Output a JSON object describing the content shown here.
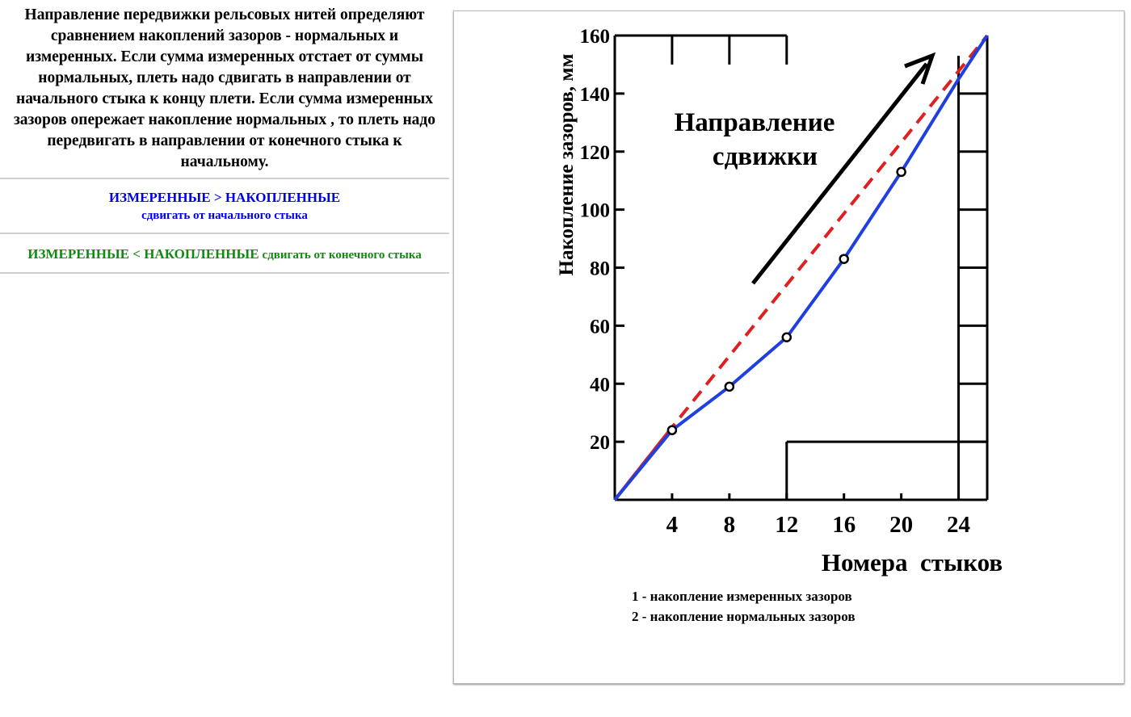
{
  "description": {
    "text": "Направление передвижки рельсовых нитей определяют сравнением накоплений зазоров - нормальных и измеренных. Если сумма измеренных отстает от суммы нормальных, плеть надо сдвигать в направлении от начального стыка к концу плети. Если сумма измеренных зазоров опережает накопление нормальных , то плеть надо передвигать в направлении от конечного стыка к начальному."
  },
  "rule_blue": {
    "condition": "ИЗМЕРЕННЫЕ  >   НАКОПЛЕННЫЕ",
    "action": "сдвигать от начального стыка"
  },
  "rule_green": {
    "condition": "ИЗМЕРЕННЫЕ  < НАКОПЛЕННЫЕ",
    "action": "сдвигать от конечного стыка"
  },
  "colors": {
    "blue_text": "#0000e6",
    "green_text": "#118a11",
    "measured_line": "#1f3fe0",
    "normal_line": "#e02020",
    "axes": "#000000"
  },
  "chart_data": {
    "type": "line",
    "title": "",
    "ylabel": "Накопление зазоров, мм",
    "xlabel": "Номера  стыков",
    "annotation": "Направление сдвижки",
    "annotation_lines": [
      "Направление",
      "сдвижки"
    ],
    "xlim": [
      0,
      26
    ],
    "ylim": [
      0,
      160
    ],
    "x_ticks": [
      4,
      8,
      12,
      16,
      20,
      24
    ],
    "y_ticks": [
      20,
      40,
      60,
      80,
      100,
      120,
      140,
      160
    ],
    "series": [
      {
        "color": "#1f3fe0",
        "style": "solid",
        "markers": "open-circle",
        "x": [
          0,
          4,
          8,
          12,
          16,
          20,
          24,
          26
        ],
        "y": [
          0,
          24,
          39,
          56,
          83,
          113,
          145,
          160
        ]
      },
      {
        "color": "#e02020",
        "style": "dashed",
        "x": [
          0,
          4,
          26
        ],
        "y": [
          0,
          25,
          160
        ]
      }
    ],
    "legend": {
      "placement": "bottom",
      "entries": [
        "1 - накопление измеренных зазоров",
        "2 - накопление нормальных зазоров"
      ]
    }
  }
}
